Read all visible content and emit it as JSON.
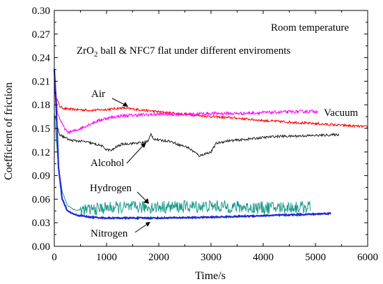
{
  "chart_data": {
    "type": "line",
    "xlabel": "Time/s",
    "ylabel": "Coefficient of friction",
    "xlim": [
      0,
      6000
    ],
    "ylim": [
      0,
      0.3
    ],
    "xticks": [
      0,
      1000,
      2000,
      3000,
      4000,
      5000,
      6000
    ],
    "yticks": [
      0.0,
      0.03,
      0.06,
      0.09,
      0.12,
      0.15,
      0.18,
      0.21,
      0.24,
      0.27,
      0.3
    ],
    "xtick_labels": [
      "0",
      "1000",
      "2000",
      "3000",
      "4000",
      "5000",
      "6000"
    ],
    "ytick_labels": [
      "0.00",
      "0.03",
      "0.06",
      "0.09",
      "0.12",
      "0.15",
      "0.18",
      "0.21",
      "0.24",
      "0.27",
      "0.30"
    ],
    "grid": false,
    "annotations": {
      "condition": "Room temperature",
      "title_prefix": "ZrO",
      "title_sub": "2",
      "title_suffix": " ball & NFC7 flat under different enviroments"
    },
    "series": [
      {
        "name": "Air",
        "color": "#ff0000",
        "points": [
          [
            0,
            0.225
          ],
          [
            40,
            0.19
          ],
          [
            100,
            0.178
          ],
          [
            200,
            0.175
          ],
          [
            400,
            0.174
          ],
          [
            700,
            0.173
          ],
          [
            1000,
            0.174
          ],
          [
            1300,
            0.176
          ],
          [
            1600,
            0.174
          ],
          [
            2000,
            0.171
          ],
          [
            2500,
            0.168
          ],
          [
            3000,
            0.165
          ],
          [
            3500,
            0.163
          ],
          [
            4000,
            0.16
          ],
          [
            4500,
            0.158
          ],
          [
            5000,
            0.156
          ],
          [
            5500,
            0.154
          ],
          [
            6000,
            0.152
          ]
        ],
        "noise": 0.0015
      },
      {
        "name": "Vacuum",
        "color": "#ff00ff",
        "points": [
          [
            0,
            0.225
          ],
          [
            60,
            0.17
          ],
          [
            150,
            0.155
          ],
          [
            250,
            0.145
          ],
          [
            400,
            0.147
          ],
          [
            600,
            0.153
          ],
          [
            800,
            0.159
          ],
          [
            1000,
            0.163
          ],
          [
            1300,
            0.166
          ],
          [
            1600,
            0.167
          ],
          [
            2000,
            0.168
          ],
          [
            2500,
            0.168
          ],
          [
            3000,
            0.169
          ],
          [
            3500,
            0.169
          ],
          [
            4000,
            0.17
          ],
          [
            4500,
            0.171
          ],
          [
            5050,
            0.172
          ]
        ],
        "noise": 0.002
      },
      {
        "name": "Alcohol",
        "color": "#222222",
        "points": [
          [
            0,
            0.168
          ],
          [
            100,
            0.142
          ],
          [
            300,
            0.135
          ],
          [
            600,
            0.133
          ],
          [
            900,
            0.128
          ],
          [
            1000,
            0.123
          ],
          [
            1100,
            0.122
          ],
          [
            1200,
            0.127
          ],
          [
            1300,
            0.13
          ],
          [
            1500,
            0.131
          ],
          [
            1700,
            0.132
          ],
          [
            1800,
            0.134
          ],
          [
            1850,
            0.143
          ],
          [
            1900,
            0.137
          ],
          [
            2000,
            0.135
          ],
          [
            2200,
            0.134
          ],
          [
            2400,
            0.129
          ],
          [
            2550,
            0.126
          ],
          [
            2700,
            0.119
          ],
          [
            2780,
            0.115
          ],
          [
            2850,
            0.117
          ],
          [
            3000,
            0.12
          ],
          [
            3100,
            0.131
          ],
          [
            3300,
            0.134
          ],
          [
            3500,
            0.135
          ],
          [
            3800,
            0.137
          ],
          [
            4100,
            0.139
          ],
          [
            4300,
            0.14
          ],
          [
            4500,
            0.14
          ],
          [
            5000,
            0.141
          ],
          [
            5450,
            0.142
          ]
        ],
        "noise": 0.0015
      },
      {
        "name": "Hydrogen",
        "color": "#1a9a8a",
        "points": [
          [
            0,
            0.168
          ],
          [
            80,
            0.1
          ],
          [
            150,
            0.07
          ],
          [
            250,
            0.052
          ],
          [
            400,
            0.046
          ],
          [
            600,
            0.046
          ],
          [
            1000,
            0.049
          ],
          [
            2000,
            0.05
          ],
          [
            3000,
            0.051
          ],
          [
            4000,
            0.049
          ],
          [
            4900,
            0.05
          ]
        ],
        "noise": 0.008,
        "noise_start": 500
      },
      {
        "name": "Nitrogen",
        "color": "#1e2bd6",
        "points": [
          [
            0,
            0.225
          ],
          [
            40,
            0.17
          ],
          [
            80,
            0.1
          ],
          [
            150,
            0.06
          ],
          [
            250,
            0.045
          ],
          [
            400,
            0.04
          ],
          [
            700,
            0.037
          ],
          [
            1000,
            0.036
          ],
          [
            2000,
            0.036
          ],
          [
            3000,
            0.037
          ],
          [
            4000,
            0.039
          ],
          [
            5000,
            0.041
          ],
          [
            5300,
            0.042
          ]
        ],
        "noise": 0.0008
      }
    ],
    "labels": {
      "air": "Air",
      "vacuum": "Vacuum",
      "alcohol": "Alcohol",
      "hydrogen": "Hydrogen",
      "nitrogen": "Nitrogen"
    }
  }
}
